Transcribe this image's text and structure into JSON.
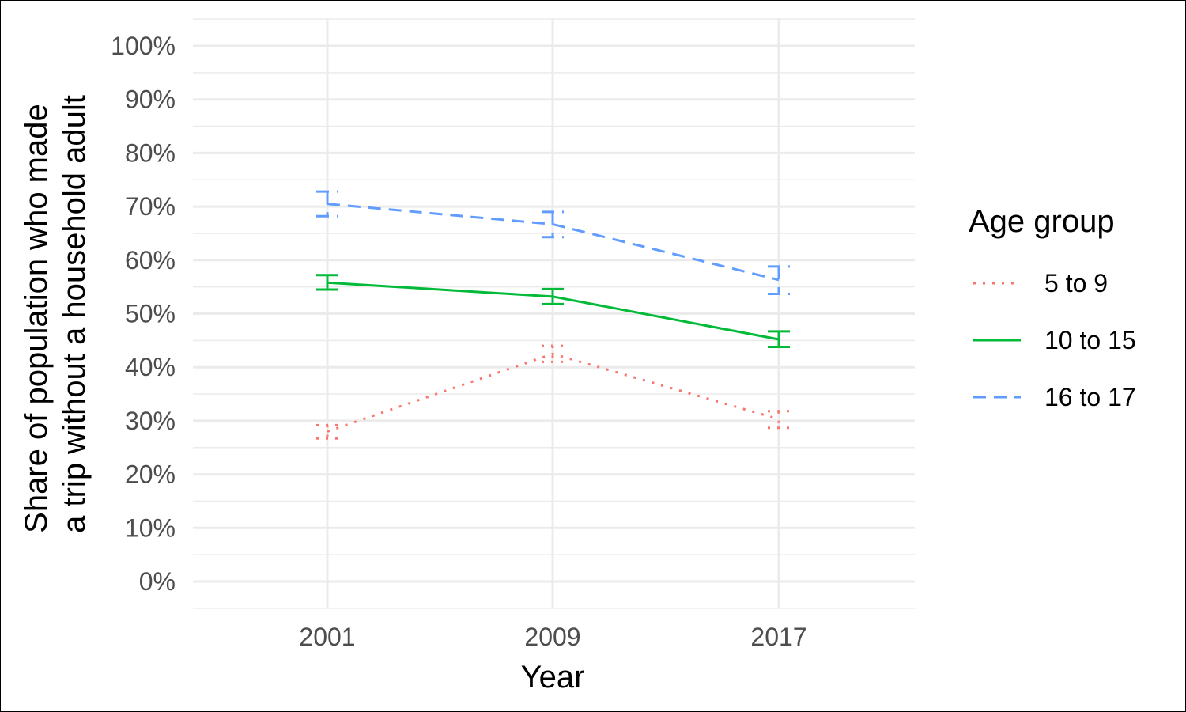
{
  "chart_data": {
    "type": "line",
    "title": "",
    "xlabel": "Year",
    "ylabel_lines": [
      "Share of population who made",
      "a trip without a household adult"
    ],
    "x": [
      "2001",
      "2009",
      "2017"
    ],
    "ylim": [
      0,
      1
    ],
    "y_ticks": [
      {
        "value": 0.0,
        "label": "0%"
      },
      {
        "value": 0.1,
        "label": "10%"
      },
      {
        "value": 0.2,
        "label": "20%"
      },
      {
        "value": 0.3,
        "label": "30%"
      },
      {
        "value": 0.4,
        "label": "40%"
      },
      {
        "value": 0.5,
        "label": "50%"
      },
      {
        "value": 0.6,
        "label": "60%"
      },
      {
        "value": 0.7,
        "label": "70%"
      },
      {
        "value": 0.8,
        "label": "80%"
      },
      {
        "value": 0.9,
        "label": "90%"
      },
      {
        "value": 1.0,
        "label": "100%"
      }
    ],
    "grid": true,
    "legend": {
      "title": "Age group",
      "position": "right"
    },
    "series": [
      {
        "name": "5 to 9",
        "color": "#F8766D",
        "linestyle": "dotted",
        "values": [
          0.28,
          0.425,
          0.303
        ],
        "lower": [
          0.267,
          0.41,
          0.287
        ],
        "upper": [
          0.292,
          0.44,
          0.318
        ]
      },
      {
        "name": "10 to 15",
        "color": "#00BA38",
        "linestyle": "solid",
        "values": [
          0.558,
          0.532,
          0.452
        ],
        "lower": [
          0.545,
          0.518,
          0.438
        ],
        "upper": [
          0.572,
          0.546,
          0.467
        ]
      },
      {
        "name": "16 to 17",
        "color": "#619CFF",
        "linestyle": "dashed",
        "values": [
          0.705,
          0.667,
          0.563
        ],
        "lower": [
          0.682,
          0.643,
          0.537
        ],
        "upper": [
          0.728,
          0.69,
          0.588
        ]
      }
    ]
  }
}
